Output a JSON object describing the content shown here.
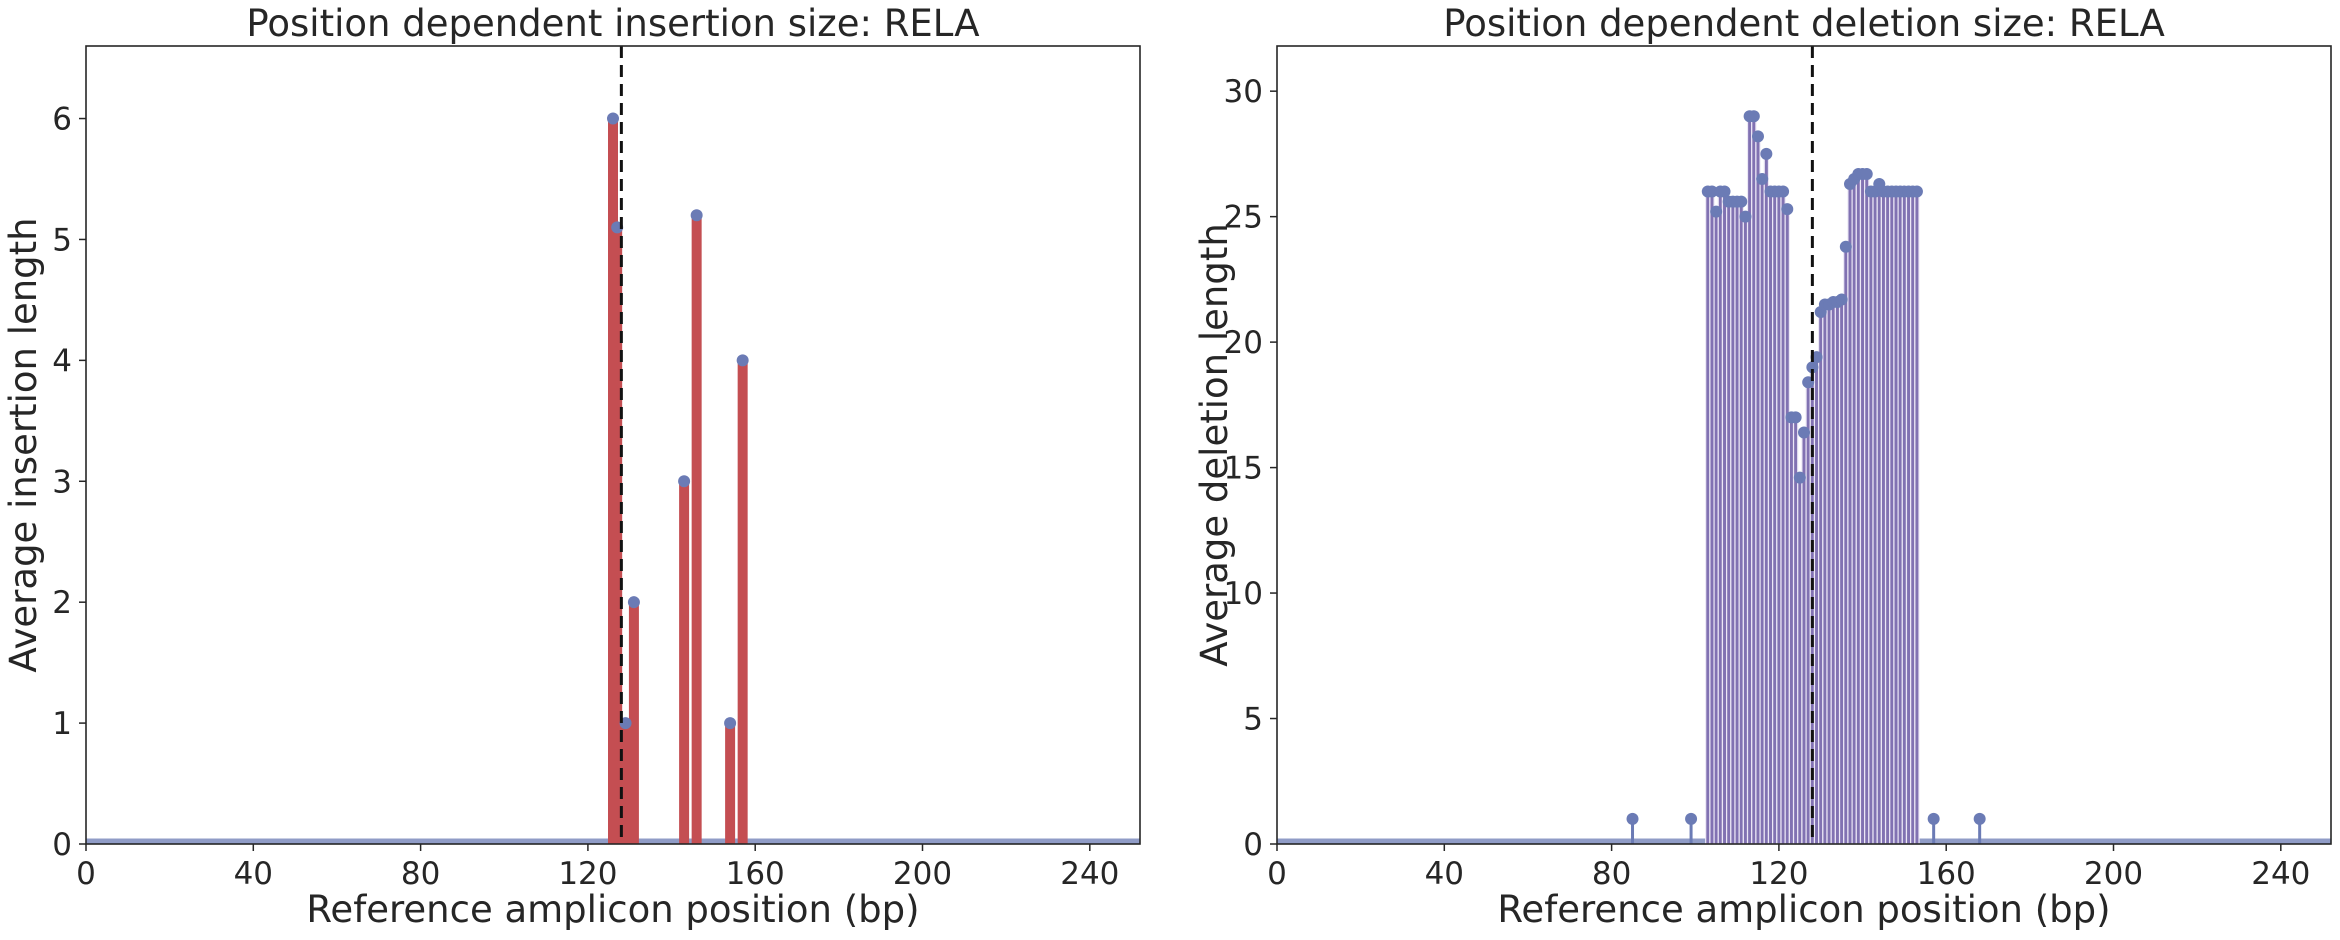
{
  "chart_data": [
    {
      "type": "bar",
      "title": "Position dependent insertion size: RELA",
      "xlabel": "Reference amplicon position (bp)",
      "ylabel": "Average insertion length",
      "xlim": [
        0,
        252
      ],
      "ylim": [
        0,
        6.6
      ],
      "xticks": [
        0,
        40,
        80,
        120,
        160,
        200,
        240
      ],
      "yticks": [
        0,
        1,
        2,
        3,
        4,
        5,
        6
      ],
      "cut_site": 128,
      "grid": false,
      "bar_color": "#c44e52",
      "marker_color": "#6b7bb5",
      "x": [
        126,
        127,
        129,
        131,
        143,
        146,
        154,
        157
      ],
      "values": [
        6,
        5.1,
        1,
        2,
        3,
        5.2,
        1,
        4
      ]
    },
    {
      "type": "bar",
      "title": "Position dependent deletion size: RELA",
      "xlabel": "Reference amplicon position (bp)",
      "ylabel": "Average deletion length",
      "xlim": [
        0,
        252
      ],
      "ylim": [
        0,
        31.8
      ],
      "xticks": [
        0,
        40,
        80,
        120,
        160,
        200,
        240
      ],
      "yticks": [
        0,
        5,
        10,
        15,
        20,
        25,
        30
      ],
      "cut_site": 128,
      "grid": false,
      "bar_color": "#8172b2",
      "marker_color": "#6b7bb5",
      "x": [
        85,
        99,
        103,
        104,
        105,
        106,
        107,
        108,
        109,
        110,
        111,
        112,
        113,
        114,
        115,
        116,
        117,
        118,
        119,
        120,
        121,
        122,
        123,
        124,
        125,
        126,
        127,
        128,
        129,
        130,
        131,
        132,
        133,
        134,
        135,
        136,
        137,
        138,
        139,
        140,
        141,
        142,
        143,
        144,
        145,
        146,
        147,
        148,
        149,
        150,
        151,
        152,
        153,
        157,
        168
      ],
      "values": [
        1,
        1,
        26,
        26,
        25.2,
        26,
        26,
        25.6,
        25.6,
        25.6,
        25.6,
        25,
        29,
        29,
        28.2,
        26.5,
        27.5,
        26,
        26,
        26,
        26,
        25.3,
        17,
        17,
        14.6,
        16.4,
        18.4,
        19,
        19.4,
        21.2,
        21.5,
        21.5,
        21.6,
        21.6,
        21.7,
        23.8,
        26.3,
        26.5,
        26.7,
        26.7,
        26.7,
        26,
        26,
        26.3,
        26,
        26,
        26,
        26,
        26,
        26,
        26,
        26,
        26,
        1,
        1
      ]
    }
  ]
}
